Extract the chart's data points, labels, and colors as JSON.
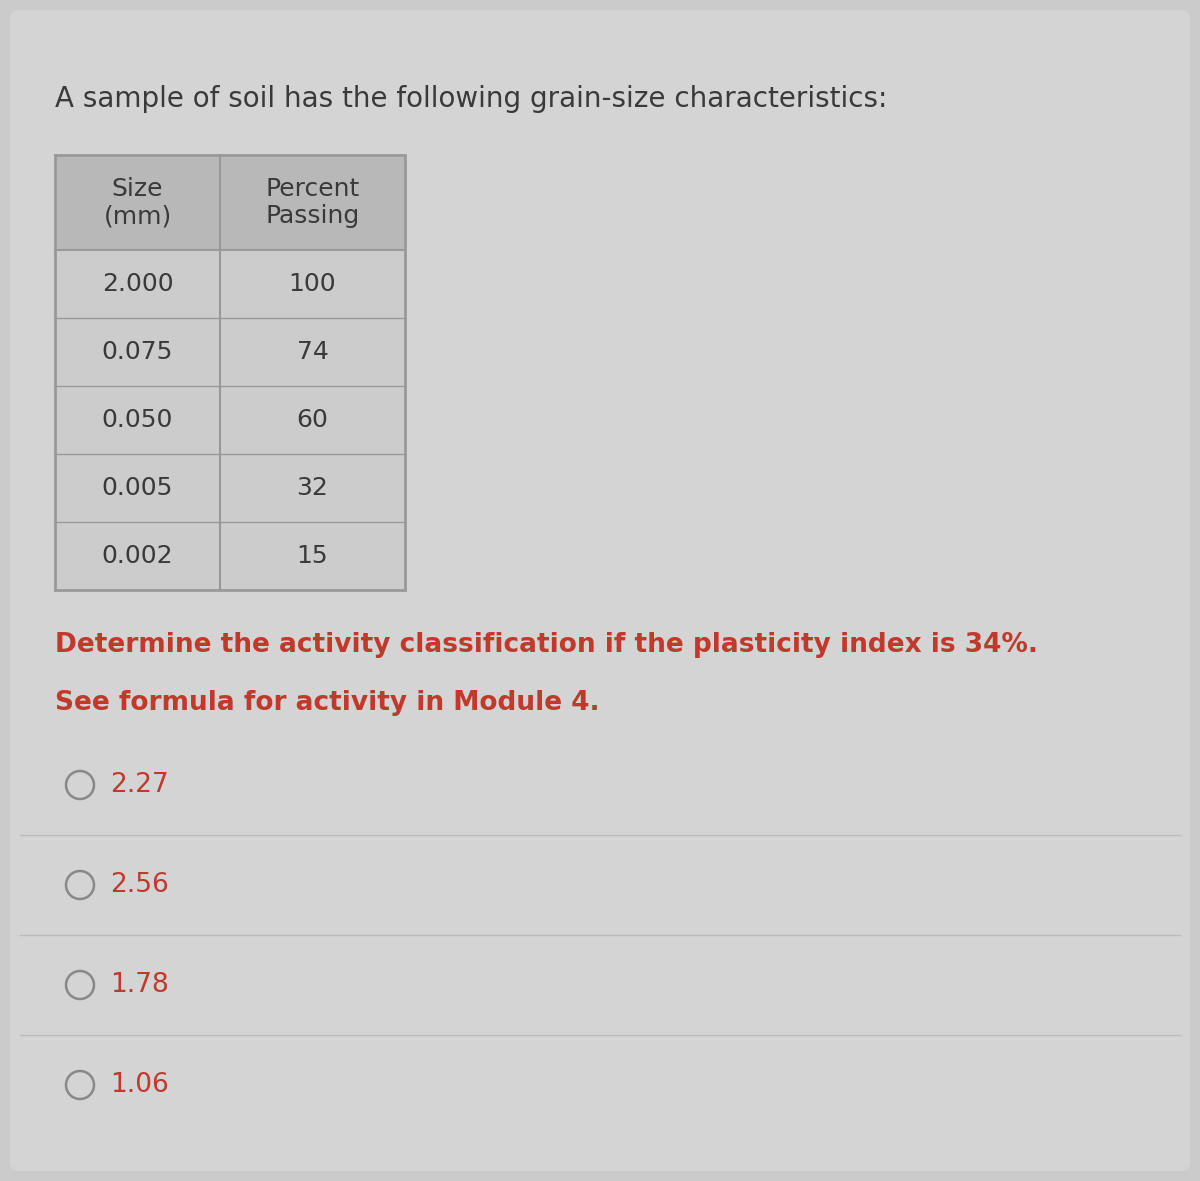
{
  "title": "A sample of soil has the following grain-size characteristics:",
  "title_fontsize": 20,
  "title_color": "#3a3a3a",
  "table_headers_line1": [
    "Size",
    "Percent"
  ],
  "table_headers_line2": [
    "(mm)",
    "Passing"
  ],
  "table_data": [
    [
      "2.000",
      "100"
    ],
    [
      "0.075",
      "74"
    ],
    [
      "0.050",
      "60"
    ],
    [
      "0.005",
      "32"
    ],
    [
      "0.002",
      "15"
    ]
  ],
  "question_line1": "Determine the activity classification if the plasticity index is 34%.",
  "question_line2": "See formula for activity in Module 4.",
  "question_color": "#c0392b",
  "question_fontsize": 19,
  "options": [
    "2.27",
    "2.56",
    "1.78",
    "1.06"
  ],
  "option_fontsize": 19,
  "option_color": "#c0392b",
  "background_color": "#cbcbcb",
  "card_color": "#d4d4d4",
  "table_header_bg": "#b8b8b8",
  "table_row_bg": "#cccccc",
  "table_line_color": "#999999",
  "table_header_fontsize": 18,
  "table_data_fontsize": 18,
  "separator_color": "#bbbbbb"
}
